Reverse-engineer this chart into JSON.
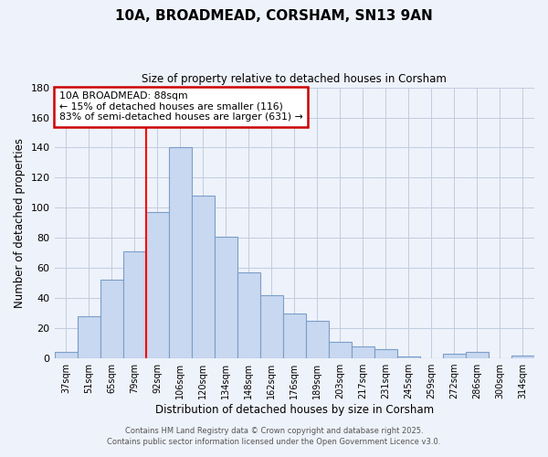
{
  "title": "10A, BROADMEAD, CORSHAM, SN13 9AN",
  "subtitle": "Size of property relative to detached houses in Corsham",
  "xlabel": "Distribution of detached houses by size in Corsham",
  "ylabel": "Number of detached properties",
  "bar_color": "#c8d8f0",
  "bar_edge_color": "#7a9ec8",
  "grid_color": "#c0cce0",
  "background_color": "#eef2fa",
  "vline_color": "red",
  "annotation_line1": "10A BROADMEAD: 88sqm",
  "annotation_line2": "← 15% of detached houses are smaller (116)",
  "annotation_line3": "83% of semi-detached houses are larger (631) →",
  "annotation_box_color": "white",
  "annotation_box_edge": "#cc0000",
  "footer1": "Contains HM Land Registry data © Crown copyright and database right 2025.",
  "footer2": "Contains public sector information licensed under the Open Government Licence v3.0.",
  "categories": [
    "37sqm",
    "51sqm",
    "65sqm",
    "79sqm",
    "92sqm",
    "106sqm",
    "120sqm",
    "134sqm",
    "148sqm",
    "162sqm",
    "176sqm",
    "189sqm",
    "203sqm",
    "217sqm",
    "231sqm",
    "245sqm",
    "259sqm",
    "272sqm",
    "286sqm",
    "300sqm",
    "314sqm"
  ],
  "values": [
    4,
    28,
    52,
    71,
    97,
    140,
    108,
    81,
    57,
    42,
    30,
    25,
    11,
    8,
    6,
    1,
    0,
    3,
    4,
    0,
    2
  ],
  "ylim": [
    0,
    180
  ],
  "yticks": [
    0,
    20,
    40,
    60,
    80,
    100,
    120,
    140,
    160,
    180
  ],
  "bar_width": 1.0,
  "vline_bar_index": 4
}
